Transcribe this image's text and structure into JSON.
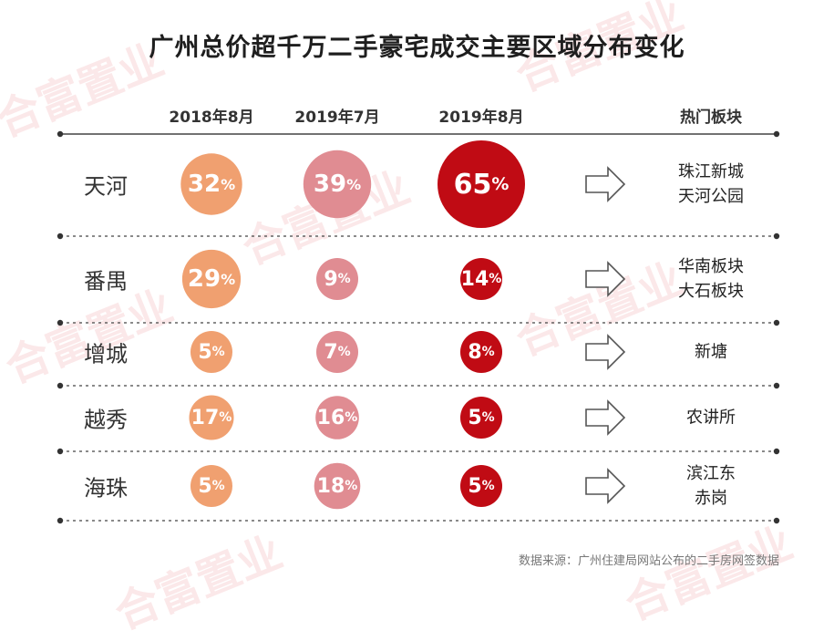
{
  "title": "广州总价超千万二手豪宅成交主要区域分布变化",
  "watermark": "合富置业",
  "source": "数据来源：广州住建局网站公布的二手房网签数据",
  "colors": {
    "2018年8月": "#f0a070",
    "2019年7月": "#e08c92",
    "2019年8月": "#c00b14"
  },
  "icons": {
    "arrow": "right-outline-arrow-icon"
  },
  "chart_data": {
    "type": "table",
    "title": "广州总价超千万二手豪宅成交主要区域分布变化",
    "columns": [
      "2018年8月",
      "2019年7月",
      "2019年8月"
    ],
    "hot_header": "热门板块",
    "rows": [
      {
        "region": "天河",
        "values": [
          32,
          39,
          65
        ],
        "hot": [
          "珠江新城",
          "天河公园"
        ]
      },
      {
        "region": "番禺",
        "values": [
          29,
          9,
          14
        ],
        "hot": [
          "华南板块",
          "大石板块"
        ]
      },
      {
        "region": "增城",
        "values": [
          5,
          7,
          8
        ],
        "hot": [
          "新塘"
        ]
      },
      {
        "region": "越秀",
        "values": [
          17,
          16,
          5
        ],
        "hot": [
          "农讲所"
        ]
      },
      {
        "region": "海珠",
        "values": [
          5,
          18,
          5
        ],
        "hot": [
          "滨江东",
          "赤岗"
        ]
      }
    ],
    "unit": "%"
  }
}
